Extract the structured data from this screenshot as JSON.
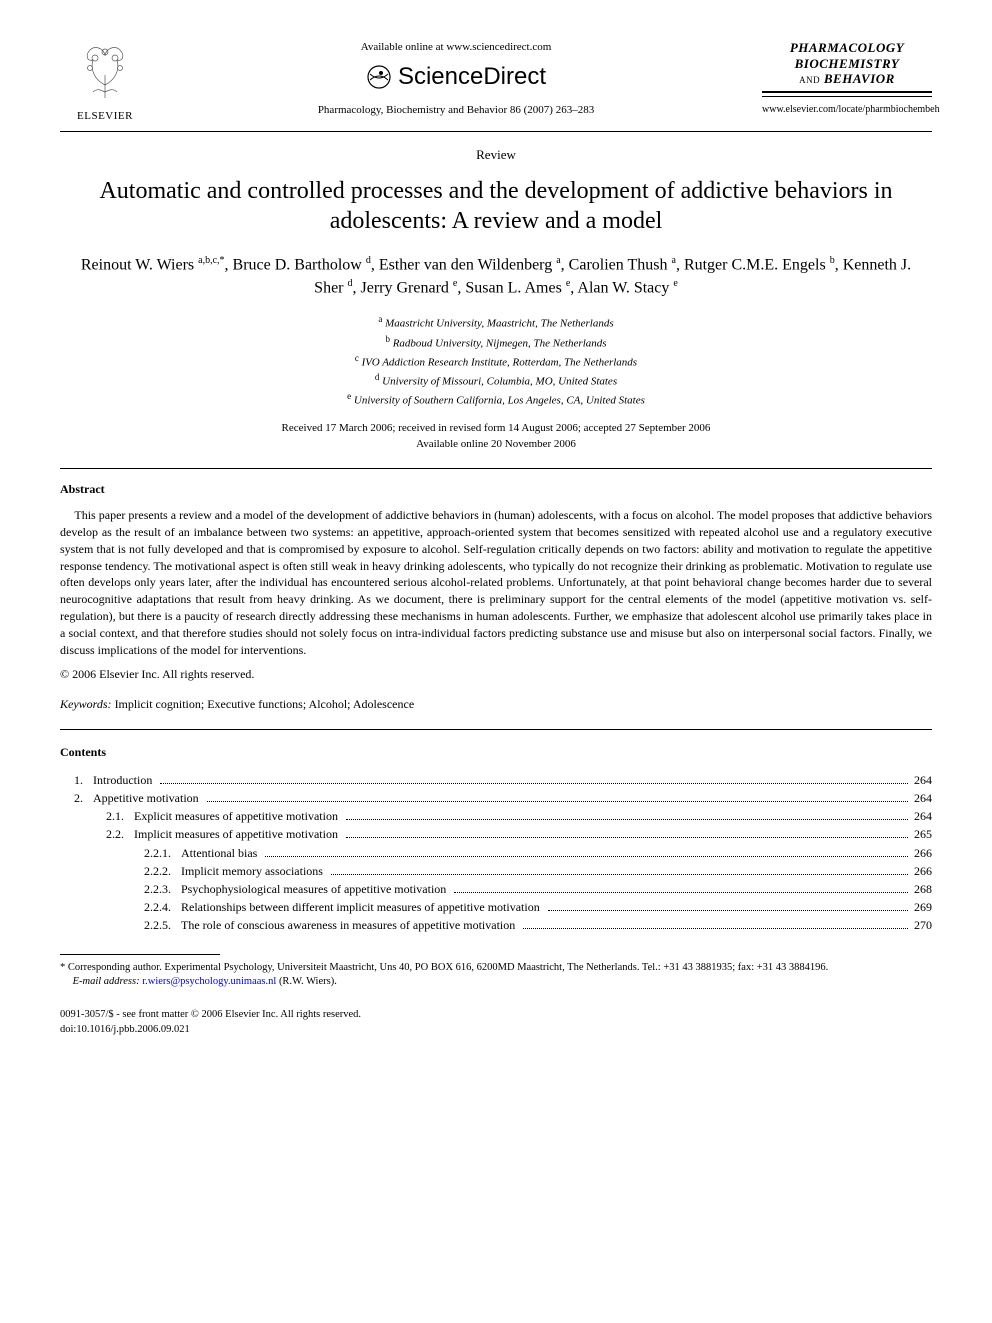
{
  "header": {
    "publisher_name": "ELSEVIER",
    "available_line": "Available online at www.sciencedirect.com",
    "sd_brand": "ScienceDirect",
    "citation": "Pharmacology, Biochemistry and Behavior 86 (2007) 263–283",
    "journal_line1": "PHARMACOLOGY",
    "journal_line2": "BIOCHEMISTRY",
    "journal_line3_prefix": "AND",
    "journal_line3": "BEHAVIOR",
    "journal_url": "www.elsevier.com/locate/pharmbiochembeh"
  },
  "article": {
    "type": "Review",
    "title": "Automatic and controlled processes and the development of addictive behaviors in adolescents: A review and a model",
    "authors_html": "Reinout W. Wiers <sup>a,b,c,*</sup>, Bruce D. Bartholow <sup>d</sup>, Esther van den Wildenberg <sup>a</sup>, Carolien Thush <sup>a</sup>, Rutger C.M.E. Engels <sup>b</sup>, Kenneth J. Sher <sup>d</sup>, Jerry Grenard <sup>e</sup>, Susan L. Ames <sup>e</sup>, Alan W. Stacy <sup>e</sup>",
    "affiliations": [
      {
        "sup": "a",
        "text": "Maastricht University, Maastricht, The Netherlands"
      },
      {
        "sup": "b",
        "text": "Radboud University, Nijmegen, The Netherlands"
      },
      {
        "sup": "c",
        "text": "IVO Addiction Research Institute, Rotterdam, The Netherlands"
      },
      {
        "sup": "d",
        "text": "University of Missouri, Columbia, MO, United States"
      },
      {
        "sup": "e",
        "text": "University of Southern California, Los Angeles, CA, United States"
      }
    ],
    "dates_line1": "Received 17 March 2006; received in revised form 14 August 2006; accepted 27 September 2006",
    "dates_line2": "Available online 20 November 2006"
  },
  "abstract": {
    "heading": "Abstract",
    "body": "This paper presents a review and a model of the development of addictive behaviors in (human) adolescents, with a focus on alcohol. The model proposes that addictive behaviors develop as the result of an imbalance between two systems: an appetitive, approach-oriented system that becomes sensitized with repeated alcohol use and a regulatory executive system that is not fully developed and that is compromised by exposure to alcohol. Self-regulation critically depends on two factors: ability and motivation to regulate the appetitive response tendency. The motivational aspect is often still weak in heavy drinking adolescents, who typically do not recognize their drinking as problematic. Motivation to regulate use often develops only years later, after the individual has encountered serious alcohol-related problems. Unfortunately, at that point behavioral change becomes harder due to several neurocognitive adaptations that result from heavy drinking. As we document, there is preliminary support for the central elements of the model (appetitive motivation vs. self-regulation), but there is a paucity of research directly addressing these mechanisms in human adolescents. Further, we emphasize that adolescent alcohol use primarily takes place in a social context, and that therefore studies should not solely focus on intra-individual factors predicting substance use and misuse but also on interpersonal social factors. Finally, we discuss implications of the model for interventions.",
    "copyright": "© 2006 Elsevier Inc. All rights reserved."
  },
  "keywords": {
    "label": "Keywords:",
    "text": " Implicit cognition; Executive functions; Alcohol; Adolescence"
  },
  "contents": {
    "heading": "Contents",
    "items": [
      {
        "level": 1,
        "num": "1.",
        "label": "Introduction",
        "page": "264"
      },
      {
        "level": 1,
        "num": "2.",
        "label": "Appetitive motivation",
        "page": "264"
      },
      {
        "level": 2,
        "num": "2.1.",
        "label": "Explicit measures of appetitive motivation",
        "page": "264"
      },
      {
        "level": 2,
        "num": "2.2.",
        "label": "Implicit measures of appetitive motivation",
        "page": "265"
      },
      {
        "level": 3,
        "num": "2.2.1.",
        "label": "Attentional bias",
        "page": "266"
      },
      {
        "level": 3,
        "num": "2.2.2.",
        "label": "Implicit memory associations",
        "page": "266"
      },
      {
        "level": 3,
        "num": "2.2.3.",
        "label": "Psychophysiological measures of appetitive motivation",
        "page": "268"
      },
      {
        "level": 3,
        "num": "2.2.4.",
        "label": "Relationships between different implicit measures of appetitive motivation",
        "page": "269"
      },
      {
        "level": 3,
        "num": "2.2.5.",
        "label": "The role of conscious awareness in measures of appetitive motivation",
        "page": "270"
      }
    ]
  },
  "footnote": {
    "corr": "* Corresponding author. Experimental Psychology, Universiteit Maastricht, Uns 40, PO BOX 616, 6200MD Maastricht, The Netherlands. Tel.: +31 43 3881935; fax: +31 43 3884196.",
    "email_label": "E-mail address:",
    "email": "r.wiers@psychology.unimaas.nl",
    "email_suffix": " (R.W. Wiers)."
  },
  "footer": {
    "line1": "0091-3057/$ - see front matter © 2006 Elsevier Inc. All rights reserved.",
    "line2": "doi:10.1016/j.pbb.2006.09.021"
  },
  "colors": {
    "text": "#000000",
    "background": "#ffffff",
    "link": "#0000cc",
    "elsevier_orange": "#ff7a00"
  }
}
